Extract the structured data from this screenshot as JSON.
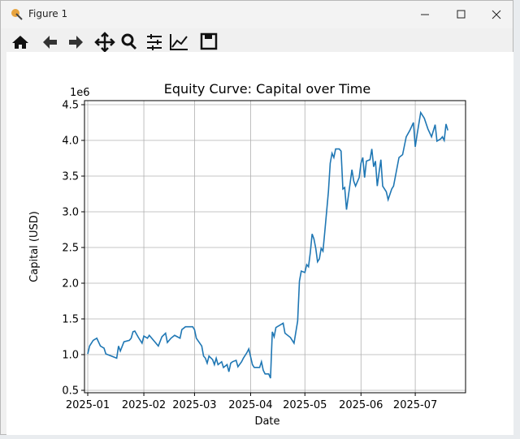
{
  "window": {
    "title": "Figure 1"
  },
  "chart_data": {
    "type": "line",
    "title": "Equity Curve: Capital over Time",
    "x_label": "Date",
    "y_label": "Capital (USD)",
    "y_offset": "1e6",
    "x": [
      0,
      1,
      3,
      5,
      7,
      9,
      10,
      13,
      16,
      17,
      18,
      20,
      23,
      24,
      25,
      26,
      28,
      30,
      31,
      33,
      34,
      37,
      39,
      41,
      43,
      44,
      46,
      48,
      51,
      52,
      54,
      58,
      59,
      60,
      63,
      64,
      65,
      66,
      67,
      69,
      70,
      71,
      72,
      74,
      75,
      77,
      78,
      79,
      80,
      82,
      83,
      85,
      86,
      88,
      89,
      91,
      92,
      95,
      96,
      97,
      98,
      100,
      101,
      102,
      103,
      104,
      106,
      108,
      109,
      112,
      114,
      116,
      117,
      118,
      120,
      121,
      122,
      123,
      124,
      125,
      126,
      127,
      128,
      129,
      130,
      131,
      133,
      134,
      135,
      136,
      137,
      139,
      140,
      141,
      142,
      143,
      145,
      146,
      147,
      148,
      150,
      151,
      152,
      153,
      154,
      156,
      157,
      158,
      159,
      160,
      161,
      162,
      163,
      165,
      166,
      168,
      169,
      172,
      174,
      176,
      178,
      180,
      181,
      182,
      184,
      186,
      188,
      190,
      192,
      193,
      195,
      196,
      197,
      198,
      199
    ],
    "series": [
      {
        "name": "Capital",
        "color": "#1f77b4",
        "values": [
          1.01,
          1.12,
          1.2,
          1.23,
          1.12,
          1.09,
          1.01,
          0.98,
          0.95,
          1.12,
          1.05,
          1.18,
          1.2,
          1.23,
          1.32,
          1.33,
          1.24,
          1.16,
          1.26,
          1.23,
          1.27,
          1.18,
          1.12,
          1.25,
          1.3,
          1.17,
          1.23,
          1.27,
          1.23,
          1.35,
          1.39,
          1.39,
          1.35,
          1.23,
          1.12,
          0.98,
          0.95,
          0.88,
          0.98,
          0.93,
          0.86,
          0.95,
          0.86,
          0.9,
          0.82,
          0.86,
          0.76,
          0.88,
          0.9,
          0.92,
          0.83,
          0.9,
          0.95,
          1.03,
          1.08,
          0.86,
          0.82,
          0.82,
          0.9,
          0.78,
          0.73,
          0.73,
          0.67,
          1.32,
          1.25,
          1.38,
          1.41,
          1.44,
          1.3,
          1.24,
          1.16,
          1.47,
          2.03,
          2.17,
          2.15,
          2.26,
          2.23,
          2.43,
          2.69,
          2.62,
          2.49,
          2.3,
          2.34,
          2.49,
          2.45,
          2.72,
          3.28,
          3.68,
          3.82,
          3.76,
          3.88,
          3.88,
          3.85,
          3.32,
          3.34,
          3.03,
          3.4,
          3.59,
          3.43,
          3.36,
          3.48,
          3.68,
          3.76,
          3.48,
          3.71,
          3.73,
          3.88,
          3.63,
          3.71,
          3.36,
          3.55,
          3.73,
          3.36,
          3.28,
          3.17,
          3.32,
          3.36,
          3.76,
          3.8,
          4.05,
          4.14,
          4.25,
          3.91,
          4.08,
          4.39,
          4.31,
          4.16,
          4.05,
          4.22,
          3.99,
          4.02,
          4.05,
          4.0,
          4.23,
          4.14
        ]
      }
    ],
    "xlim": [
      -1.8,
      208.8
    ],
    "xticks": [
      {
        "value": 0,
        "label": "2025-01"
      },
      {
        "value": 31,
        "label": "2025-02"
      },
      {
        "value": 59,
        "label": "2025-03"
      },
      {
        "value": 90,
        "label": "2025-04"
      },
      {
        "value": 120,
        "label": "2025-05"
      },
      {
        "value": 151,
        "label": "2025-06"
      },
      {
        "value": 181,
        "label": "2025-07"
      }
    ],
    "ylim": [
      0.466,
      4.557
    ],
    "yticks": [
      0.5,
      {
        "value": 1,
        "label": "1.0"
      },
      1.5,
      {
        "value": 2,
        "label": "2.0"
      },
      2.5,
      {
        "value": 3,
        "label": "3.0"
      },
      3.5,
      {
        "value": 4,
        "label": "4.0"
      },
      4.5
    ],
    "grid": true
  }
}
